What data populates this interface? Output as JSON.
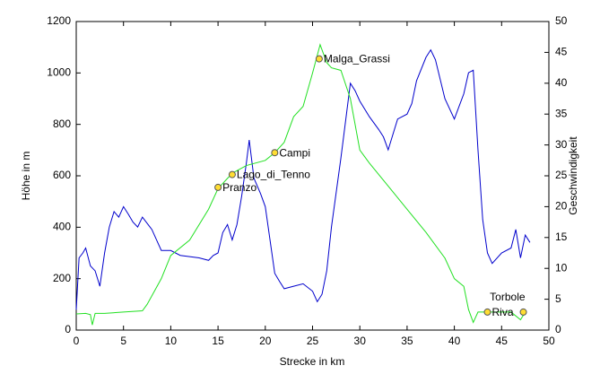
{
  "chart_data": {
    "type": "line",
    "xlabel": "Strecke in km",
    "ylabel": "Höhe in m",
    "y2label": "Geschwindigkeit",
    "xlim": [
      0,
      50
    ],
    "xticks": [
      0,
      5,
      10,
      15,
      20,
      25,
      30,
      35,
      40,
      45,
      50
    ],
    "ylim": [
      0,
      1200
    ],
    "yticks": [
      0,
      200,
      400,
      600,
      800,
      1000,
      1200
    ],
    "y2lim": [
      0,
      50
    ],
    "y2ticks": [
      0,
      5,
      10,
      15,
      20,
      25,
      30,
      35,
      40,
      45,
      50
    ],
    "grid": false,
    "series": [
      {
        "color": "#0000cc",
        "axis": "y2",
        "x": [
          0,
          0.3,
          0.7,
          1,
          1.5,
          2,
          2.5,
          3,
          3.5,
          4,
          4.5,
          5,
          5.5,
          6,
          6.5,
          7,
          8,
          8.5,
          9,
          10,
          11,
          12,
          13,
          14,
          14.5,
          15,
          15.5,
          16,
          16.5,
          17,
          17.5,
          18,
          18.3,
          18.8,
          19.5,
          20,
          20.5,
          21,
          21.5,
          22,
          23,
          24,
          25,
          25.5,
          26,
          26.5,
          27,
          28,
          29,
          29.5,
          30,
          31,
          32,
          32.5,
          33,
          33.5,
          34,
          35,
          35.5,
          36,
          37,
          37.5,
          38,
          39,
          40,
          41,
          41.5,
          42,
          42.5,
          43,
          43.5,
          44,
          45,
          46,
          46.5,
          47,
          47.5,
          48
        ],
        "values": [
          3.3,
          11.7,
          12.5,
          13.3,
          10.4,
          9.6,
          7.1,
          12.5,
          16.7,
          19.2,
          18.3,
          20,
          18.8,
          17.5,
          16.7,
          18.3,
          16.3,
          14.6,
          12.9,
          12.9,
          12.1,
          11.9,
          11.7,
          11.3,
          12.1,
          12.5,
          15.8,
          17.1,
          14.6,
          17.1,
          21.7,
          27.1,
          30.8,
          24.6,
          22.1,
          20,
          14.6,
          9.2,
          7.9,
          6.7,
          7.1,
          7.5,
          6.3,
          4.6,
          5.8,
          9.6,
          16.7,
          27.9,
          40,
          38.8,
          37.1,
          34.6,
          32.5,
          31.3,
          29.2,
          31.7,
          34.2,
          35,
          36.7,
          40.4,
          44.2,
          45.4,
          43.8,
          37.5,
          34.2,
          38.3,
          41.7,
          42.1,
          29.2,
          17.9,
          12.5,
          10.8,
          12.5,
          13.3,
          16.3,
          11.7,
          15.4,
          14.2
        ]
      },
      {
        "color": "#22e022",
        "x": [
          0,
          1,
          1.5,
          1.7,
          2,
          3,
          5,
          7,
          7.5,
          9,
          10,
          12,
          14,
          15,
          16.5,
          18,
          20,
          21,
          22,
          23,
          24,
          25,
          25.8,
          26.5,
          27,
          28,
          29,
          30,
          31,
          33,
          35,
          37,
          39,
          40,
          41,
          41.5,
          42,
          42.5,
          44,
          46,
          47,
          47.5
        ],
        "values": [
          63,
          65,
          60,
          20,
          65,
          65,
          70,
          75,
          100,
          200,
          290,
          350,
          470,
          550,
          610,
          640,
          660,
          690,
          730,
          830,
          870,
          1000,
          1110,
          1040,
          1020,
          1010,
          900,
          700,
          650,
          560,
          470,
          380,
          280,
          200,
          170,
          80,
          30,
          70,
          70,
          70,
          40,
          70
        ]
      }
    ],
    "annotations": [
      {
        "text": "Pranzo",
        "x": 15,
        "y": 555
      },
      {
        "text": "Lago_di_Tenno",
        "x": 16.5,
        "y": 605
      },
      {
        "text": "Campi",
        "x": 21,
        "y": 690
      },
      {
        "text": "Malga_Grassi",
        "x": 25.7,
        "y": 1055
      },
      {
        "text": "Riva",
        "x": 43.5,
        "y": 70
      },
      {
        "text": "Torbole",
        "x": 47.3,
        "y": 70
      }
    ]
  }
}
